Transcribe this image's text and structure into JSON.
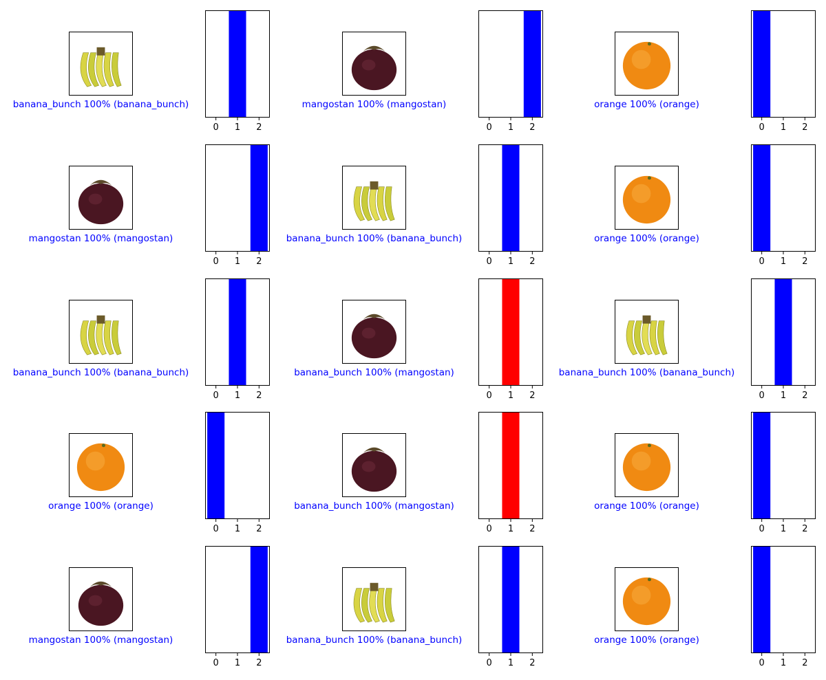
{
  "colors": {
    "correct": "#0000ff",
    "wrong": "#ff0000",
    "axis": "#000000",
    "background": "#ffffff"
  },
  "chart_data": {
    "type": "bar",
    "layout": "5x3 grid of (image + prediction bar chart) pairs",
    "categories": [
      "0",
      "1",
      "2"
    ],
    "xticks": [
      "0",
      "1",
      "2"
    ],
    "ylim": [
      0,
      1
    ],
    "grid": false,
    "legend": "none",
    "samples": [
      {
        "image": "banana-bunch-image",
        "caption": "banana_bunch 100% (banana_bunch)",
        "predicted": 1,
        "true_label": 1,
        "correct": true,
        "values": [
          0,
          1,
          0
        ]
      },
      {
        "image": "mangosteen-image",
        "caption": "mangostan 100% (mangostan)",
        "predicted": 2,
        "true_label": 2,
        "correct": true,
        "values": [
          0,
          0,
          1
        ]
      },
      {
        "image": "orange-image",
        "caption": "orange 100% (orange)",
        "predicted": 0,
        "true_label": 0,
        "correct": true,
        "values": [
          1,
          0,
          0
        ]
      },
      {
        "image": "mangosteen-image",
        "caption": "mangostan 100% (mangostan)",
        "predicted": 2,
        "true_label": 2,
        "correct": true,
        "values": [
          0,
          0,
          1
        ]
      },
      {
        "image": "banana-bunch-image",
        "caption": "banana_bunch 100% (banana_bunch)",
        "predicted": 1,
        "true_label": 1,
        "correct": true,
        "values": [
          0,
          1,
          0
        ]
      },
      {
        "image": "orange-image",
        "caption": "orange 100% (orange)",
        "predicted": 0,
        "true_label": 0,
        "correct": true,
        "values": [
          1,
          0,
          0
        ]
      },
      {
        "image": "banana-bunch-image",
        "caption": "banana_bunch 100% (banana_bunch)",
        "predicted": 1,
        "true_label": 1,
        "correct": true,
        "values": [
          0,
          1,
          0
        ]
      },
      {
        "image": "mangosteen-image",
        "caption": "banana_bunch 100% (mangostan)",
        "predicted": 1,
        "true_label": 2,
        "correct": false,
        "values": [
          0,
          1,
          0
        ]
      },
      {
        "image": "banana-bunch-image",
        "caption": "banana_bunch 100% (banana_bunch)",
        "predicted": 1,
        "true_label": 1,
        "correct": true,
        "values": [
          0,
          1,
          0
        ]
      },
      {
        "image": "orange-image",
        "caption": "orange 100% (orange)",
        "predicted": 0,
        "true_label": 0,
        "correct": true,
        "values": [
          1,
          0,
          0
        ]
      },
      {
        "image": "mangosteen-image",
        "caption": "banana_bunch 100% (mangostan)",
        "predicted": 1,
        "true_label": 2,
        "correct": false,
        "values": [
          0,
          1,
          0
        ]
      },
      {
        "image": "orange-image",
        "caption": "orange 100% (orange)",
        "predicted": 0,
        "true_label": 0,
        "correct": true,
        "values": [
          1,
          0,
          0
        ]
      },
      {
        "image": "mangosteen-image",
        "caption": "mangostan 100% (mangostan)",
        "predicted": 2,
        "true_label": 2,
        "correct": true,
        "values": [
          0,
          0,
          1
        ]
      },
      {
        "image": "banana-bunch-image",
        "caption": "banana_bunch 100% (banana_bunch)",
        "predicted": 1,
        "true_label": 1,
        "correct": true,
        "values": [
          0,
          1,
          0
        ]
      },
      {
        "image": "orange-image",
        "caption": "orange 100% (orange)",
        "predicted": 0,
        "true_label": 0,
        "correct": true,
        "values": [
          1,
          0,
          0
        ]
      }
    ]
  }
}
